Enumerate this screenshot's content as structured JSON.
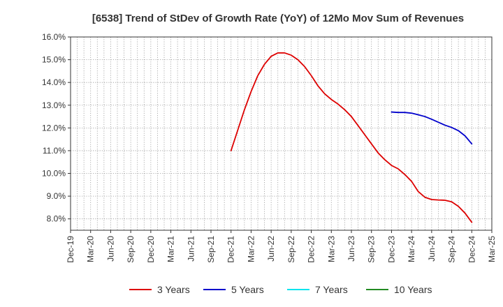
{
  "chart_data": {
    "type": "line",
    "title": "[6538]  Trend of StDev of Growth Rate (YoY) of 12Mo Mov Sum of Revenues",
    "xlabel": "",
    "ylabel": "",
    "ylim": [
      7.5,
      16.0
    ],
    "y_ticks": [
      8.0,
      9.0,
      10.0,
      11.0,
      12.0,
      13.0,
      14.0,
      15.0,
      16.0
    ],
    "y_tick_labels": [
      "8.0%",
      "9.0%",
      "10.0%",
      "11.0%",
      "12.0%",
      "13.0%",
      "14.0%",
      "15.0%",
      "16.0%"
    ],
    "x_range": [
      "Dec-19",
      "Mar-25"
    ],
    "x_tick_labels": [
      "Dec-19",
      "Mar-20",
      "Jun-20",
      "Sep-20",
      "Dec-20",
      "Mar-21",
      "Jun-21",
      "Sep-21",
      "Dec-21",
      "Mar-22",
      "Jun-22",
      "Sep-22",
      "Dec-22",
      "Mar-23",
      "Jun-23",
      "Sep-23",
      "Dec-23",
      "Mar-24",
      "Jun-24",
      "Sep-24",
      "Dec-24",
      "Mar-25"
    ],
    "grid": true,
    "legend_position": "bottom",
    "series": [
      {
        "name": "3 Years",
        "color": "#dd0000",
        "x": [
          24,
          25,
          26,
          27,
          28,
          29,
          30,
          31,
          32,
          33,
          34,
          35,
          36,
          37,
          38,
          39,
          40,
          41,
          42,
          43,
          44,
          45,
          46,
          47,
          48,
          49,
          50,
          51,
          52,
          53,
          54,
          55,
          56,
          57,
          58,
          59,
          60
        ],
        "values": [
          11.0,
          11.9,
          12.8,
          13.6,
          14.3,
          14.8,
          15.15,
          15.3,
          15.3,
          15.2,
          15.0,
          14.7,
          14.3,
          13.85,
          13.5,
          13.25,
          13.05,
          12.8,
          12.5,
          12.1,
          11.7,
          11.3,
          10.9,
          10.6,
          10.35,
          10.2,
          9.95,
          9.65,
          9.2,
          8.95,
          8.85,
          8.83,
          8.82,
          8.75,
          8.55,
          8.25,
          7.85
        ]
      },
      {
        "name": "5 Years",
        "color": "#0000cc",
        "x": [
          48,
          49,
          50,
          51,
          52,
          53,
          54,
          55,
          56,
          57,
          58,
          59,
          60
        ],
        "values": [
          12.7,
          12.68,
          12.68,
          12.65,
          12.58,
          12.5,
          12.38,
          12.25,
          12.12,
          12.02,
          11.88,
          11.65,
          11.3
        ]
      },
      {
        "name": "7 Years",
        "color": "#00e5ee",
        "x": [],
        "values": []
      },
      {
        "name": "10 Years",
        "color": "#228b22",
        "x": [],
        "values": []
      }
    ]
  }
}
